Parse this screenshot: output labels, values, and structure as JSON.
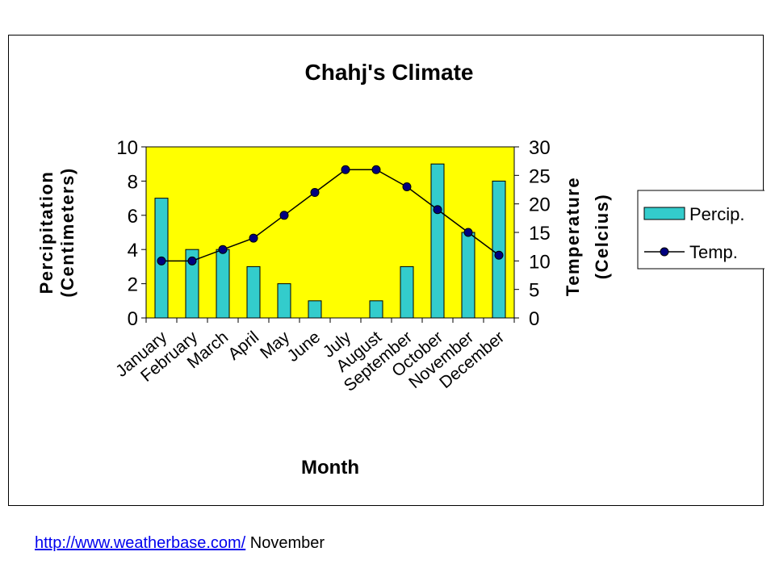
{
  "chart_data": {
    "type": "bar",
    "title": "Chahj's Climate",
    "xlabel": "Month",
    "ylabel": "Percipitation",
    "ylabel_unit": "(Centimeters)",
    "y2label": "Temperature",
    "y2label_unit": "(Celcius)",
    "categories": [
      "January",
      "February",
      "March",
      "April",
      "May",
      "June",
      "July",
      "August",
      "September",
      "October",
      "November",
      "December"
    ],
    "ylim": [
      0,
      10
    ],
    "yticks": [
      "0",
      "2",
      "4",
      "6",
      "8",
      "10"
    ],
    "y2lim": [
      0,
      30
    ],
    "y2ticks": [
      "0",
      "5",
      "10",
      "15",
      "20",
      "25",
      "30"
    ],
    "series": [
      {
        "name": "Percip.",
        "type": "bar",
        "axis": "left",
        "values": [
          7,
          4,
          4,
          3,
          2,
          1,
          0,
          1,
          3,
          9,
          5,
          8
        ]
      },
      {
        "name": "Temp.",
        "type": "line",
        "axis": "right",
        "values": [
          10,
          10,
          12,
          14,
          18,
          22,
          26,
          26,
          23,
          19,
          15,
          11
        ]
      }
    ],
    "legend": "right",
    "grid": false,
    "colors": {
      "plot_background": "#ffff00",
      "bar": "#33cccc",
      "line": "#000000",
      "marker": "#000080"
    }
  },
  "footer": {
    "link_text": "http://www.weatherbase.com/",
    "text": " November"
  }
}
